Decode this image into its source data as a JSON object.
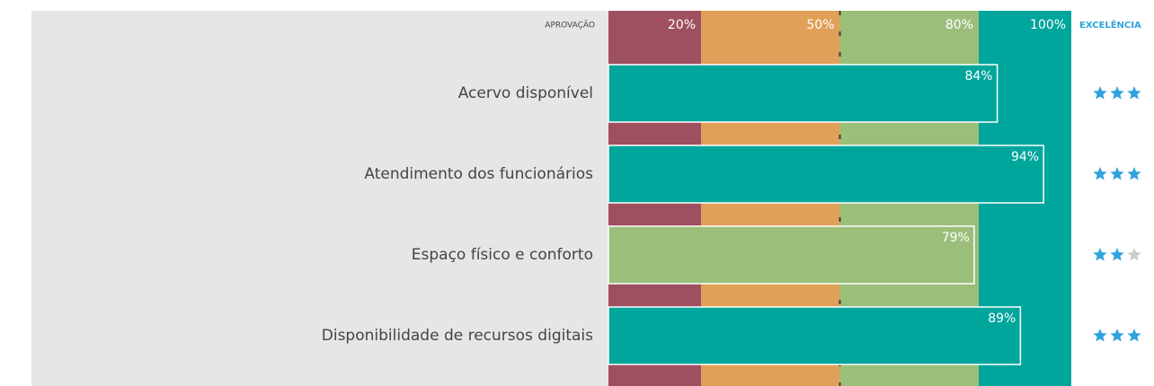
{
  "chart_data": {
    "type": "bar",
    "left_header": "APROVAÇÃO",
    "right_header": "EXCELÊNCIA",
    "categories": [
      "Acervo disponível",
      "Atendimento dos funcionários",
      "Espaço físico e conforto",
      "Disponibilidade de recursos digitais"
    ],
    "values": [
      84,
      94,
      79,
      89
    ],
    "value_labels": [
      "84%",
      "94%",
      "79%",
      "89%"
    ],
    "colors": [
      "#00a69c",
      "#00a69c",
      "#9bbf7b",
      "#00a69c"
    ],
    "xlim": [
      0,
      100
    ],
    "xticks": [
      {
        "value": 20,
        "label": "20%"
      },
      {
        "value": 50,
        "label": "50%"
      },
      {
        "value": 80,
        "label": "80%"
      },
      {
        "value": 100,
        "label": "100%"
      }
    ],
    "band_colors": [
      "#9e4f60",
      "#e1a058",
      "#9bbf7b",
      "#00a69c"
    ],
    "reference_line": 50,
    "ratings": [
      3,
      3,
      2,
      3
    ],
    "max_rating": 3,
    "star_color": "#2ea3dc",
    "empty_star_color": "#cccccc"
  }
}
